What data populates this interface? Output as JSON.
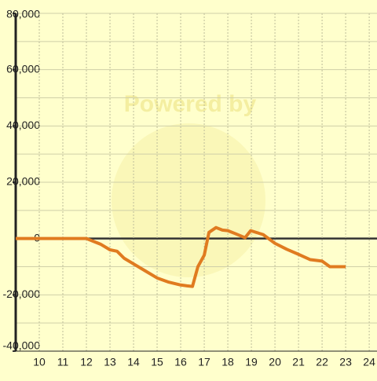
{
  "chart_data": {
    "type": "line",
    "watermark": "Powered by",
    "x": [
      9,
      12,
      12.3,
      12.6,
      13,
      13.3,
      13.6,
      14,
      14.5,
      15,
      15.5,
      16,
      16.27,
      16.5,
      16.73,
      17,
      17.2,
      17.5,
      17.77,
      18,
      18.33,
      18.73,
      18.97,
      19.5,
      20,
      20.5,
      21,
      21.5,
      22,
      22.33,
      23
    ],
    "series": [
      {
        "color": "#e07b20",
        "values": [
          0,
          0,
          -1000,
          -2000,
          -4000,
          -4500,
          -7000,
          -9000,
          -11500,
          -14000,
          -15500,
          -16500,
          -16800,
          -17000,
          -10000,
          -5900,
          2200,
          3900,
          3000,
          2800,
          1700,
          300,
          2800,
          1400,
          -1700,
          -3800,
          -5600,
          -7500,
          -8000,
          -10000,
          -10000
        ]
      }
    ],
    "xlim": [
      9,
      24.33
    ],
    "xticks": [
      10,
      11,
      12,
      13,
      14,
      15,
      16,
      17,
      18,
      19,
      20,
      21,
      22,
      23,
      24
    ],
    "ylim": [
      -40000,
      80000
    ],
    "yticks": [
      {
        "value": -40000,
        "label": "-40,000"
      },
      {
        "value": -20000,
        "label": "-20,000"
      },
      0,
      {
        "value": 20000,
        "label": "20,000"
      },
      {
        "value": 40000,
        "label": "40,000"
      },
      {
        "value": 60000,
        "label": "60,000"
      },
      {
        "value": 80000,
        "label": "80,000"
      }
    ],
    "minor_grid_step": 10000,
    "grid": true
  }
}
